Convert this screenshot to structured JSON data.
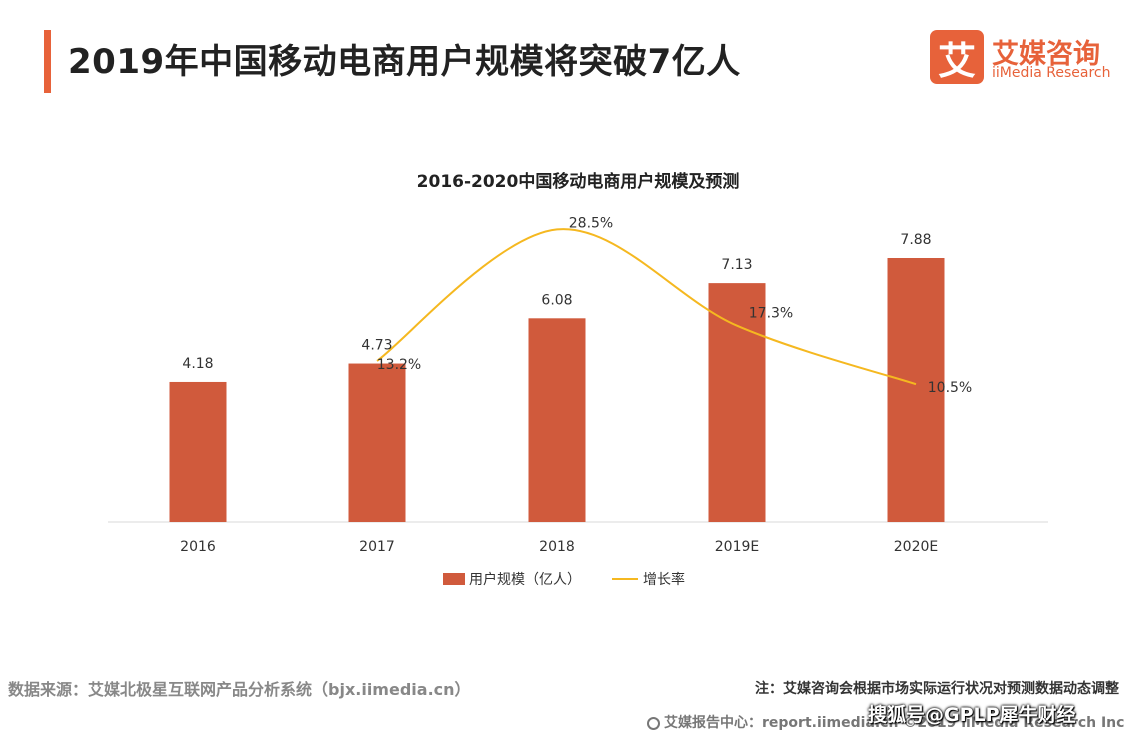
{
  "header": {
    "title": "2019年中国移动电商用户规模将突破7亿人"
  },
  "logo": {
    "mark_text": "艾",
    "name_cn": "艾媒咨询",
    "name_en": "iiMedia Research"
  },
  "chart_data": {
    "type": "bar",
    "title": "2016-2020中国移动电商用户规模及预测",
    "categories": [
      "2016",
      "2017",
      "2018",
      "2019E",
      "2020E"
    ],
    "series": [
      {
        "name": "用户规模（亿人）",
        "type": "bar",
        "values": [
          4.18,
          4.73,
          6.08,
          7.13,
          7.88
        ],
        "labels": [
          "4.18",
          "4.73",
          "6.08",
          "7.13",
          "7.88"
        ],
        "color": "#d05a3c"
      },
      {
        "name": "增长率",
        "type": "line",
        "smooth": true,
        "values": [
          null,
          13.2,
          28.5,
          17.3,
          10.5
        ],
        "labels": [
          "",
          "13.2%",
          "28.5%",
          "17.3%",
          "10.5%"
        ],
        "color": "#f5b820"
      }
    ],
    "legend_position": "bottom",
    "grid": false
  },
  "footer": {
    "source": "数据来源：艾媒北极星互联网产品分析系统（bjx.iimedia.cn）",
    "note": "注：艾媒咨询会根据市场实际运行状况对预测数据动态调整",
    "report_center": "艾媒报告中心：report.iimedia.cn ©2019  iiMedia Research Inc",
    "watermark": "搜狐号@GPLP犀牛财经"
  }
}
